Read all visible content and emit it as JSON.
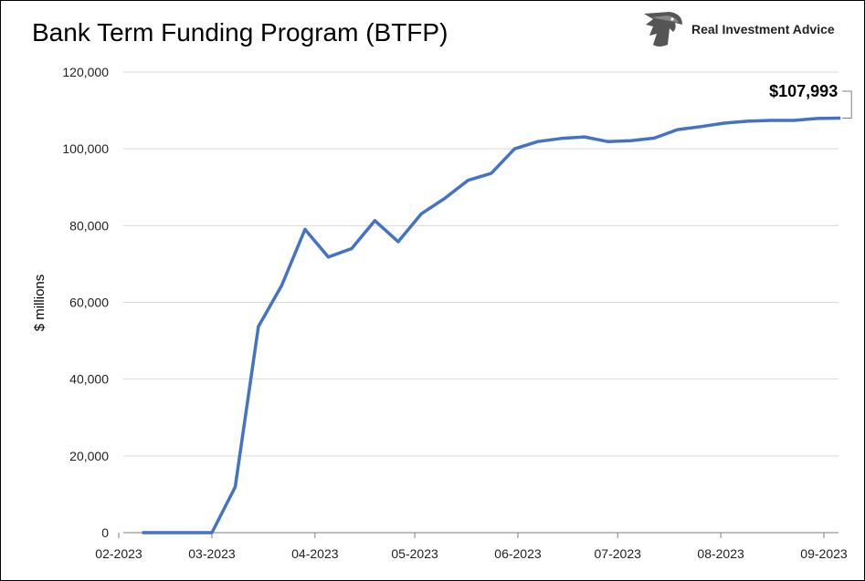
{
  "header": {
    "title": "Bank Term Funding Program (BTFP)",
    "brand": "Real Investment Advice",
    "logo_icon": "eagle-head-icon"
  },
  "colors": {
    "series": "#4472c4",
    "grid": "#d9d9d9",
    "axis": "#7f7f7f"
  },
  "chart_data": {
    "type": "line",
    "title": "Bank Term Funding Program (BTFP)",
    "xlabel": "",
    "ylabel": "$ millions",
    "ylim": [
      0,
      120000
    ],
    "y_ticks": [
      0,
      20000,
      40000,
      60000,
      80000,
      100000,
      120000
    ],
    "y_tick_labels": [
      "0",
      "20,000",
      "40,000",
      "60,000",
      "80,000",
      "100,000",
      "120,000"
    ],
    "x_tick_labels": [
      "02-2023",
      "03-2023",
      "04-2023",
      "05-2023",
      "06-2023",
      "07-2023",
      "08-2023",
      "09-2023"
    ],
    "grid": true,
    "legend": "none",
    "annotation": "$107,993",
    "series": [
      {
        "x": [
          "2023-02-08",
          "2023-02-15",
          "2023-02-22",
          "2023-03-01",
          "2023-03-08",
          "2023-03-15",
          "2023-03-22",
          "2023-03-29",
          "2023-04-05",
          "2023-04-12",
          "2023-04-19",
          "2023-04-26",
          "2023-05-03",
          "2023-05-10",
          "2023-05-17",
          "2023-05-24",
          "2023-05-31",
          "2023-06-07",
          "2023-06-14",
          "2023-06-21",
          "2023-06-28",
          "2023-07-05",
          "2023-07-12",
          "2023-07-19",
          "2023-07-26",
          "2023-08-02",
          "2023-08-09",
          "2023-08-16",
          "2023-08-23",
          "2023-08-30",
          "2023-09-06"
        ],
        "values": [
          0,
          0,
          0,
          0,
          11900,
          53700,
          64400,
          79000,
          71800,
          74000,
          81300,
          75800,
          83100,
          87100,
          91800,
          93600,
          100000,
          101900,
          102700,
          103100,
          101900,
          102100,
          102800,
          105000,
          105800,
          106700,
          107200,
          107400,
          107400,
          107900,
          107993
        ]
      }
    ]
  }
}
